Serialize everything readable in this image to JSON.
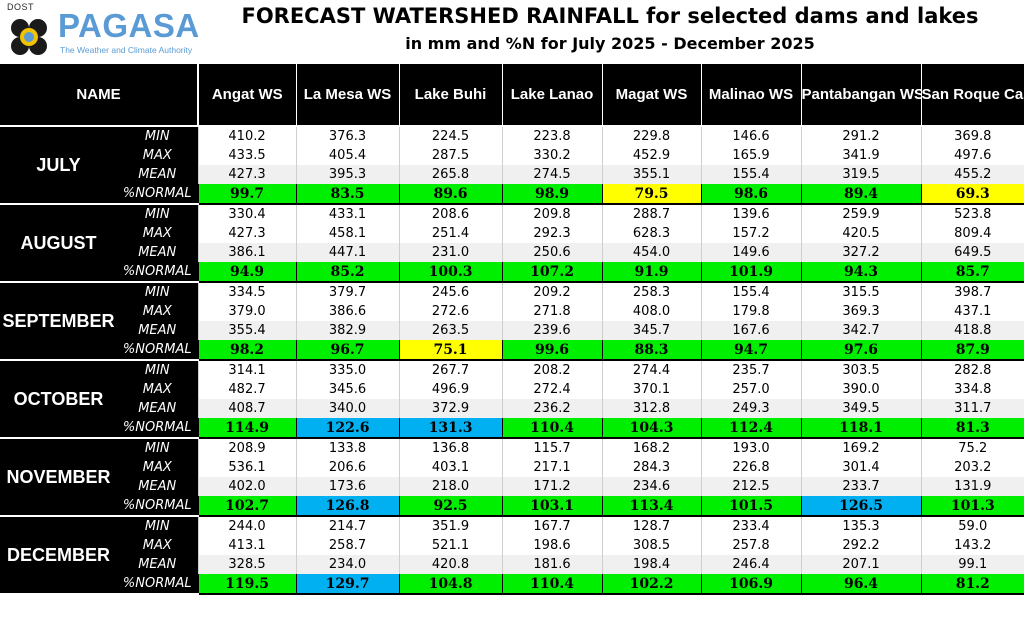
{
  "logo": {
    "agency_prefix": "DOST",
    "brand": "PAGASA",
    "tagline": "The Weather and Climate Authority"
  },
  "title": "FORECAST WATERSHED RAINFALL for selected dams and lakes",
  "subtitle": "in mm and %N for July 2025 - December 2025",
  "table": {
    "name_header": "NAME",
    "columns": [
      "Angat WS",
      "La Mesa WS",
      "Lake Buhi",
      "Lake Lanao",
      "Magat WS",
      "Malinao WS",
      "Pantabangan WS",
      "San Roque Cascade WS"
    ],
    "stat_labels": [
      "MIN",
      "MAX",
      "MEAN",
      "%NORMAL"
    ],
    "months": [
      {
        "name": "JULY",
        "min": [
          "410.2",
          "376.3",
          "224.5",
          "223.8",
          "229.8",
          "146.6",
          "291.2",
          "369.8"
        ],
        "max": [
          "433.5",
          "405.4",
          "287.5",
          "330.2",
          "452.9",
          "165.9",
          "341.9",
          "497.6"
        ],
        "mean": [
          "427.3",
          "395.3",
          "265.8",
          "274.5",
          "355.1",
          "155.4",
          "319.5",
          "455.2"
        ],
        "normal": [
          "99.7",
          "83.5",
          "89.6",
          "98.9",
          "79.5",
          "98.6",
          "89.4",
          "69.3"
        ],
        "normal_level": [
          "green",
          "green",
          "green",
          "green",
          "yellow",
          "green",
          "green",
          "yellow"
        ]
      },
      {
        "name": "AUGUST",
        "min": [
          "330.4",
          "433.1",
          "208.6",
          "209.8",
          "288.7",
          "139.6",
          "259.9",
          "523.8"
        ],
        "max": [
          "427.3",
          "458.1",
          "251.4",
          "292.3",
          "628.3",
          "157.2",
          "420.5",
          "809.4"
        ],
        "mean": [
          "386.1",
          "447.1",
          "231.0",
          "250.6",
          "454.0",
          "149.6",
          "327.2",
          "649.5"
        ],
        "normal": [
          "94.9",
          "85.2",
          "100.3",
          "107.2",
          "91.9",
          "101.9",
          "94.3",
          "85.7"
        ],
        "normal_level": [
          "green",
          "green",
          "green",
          "green",
          "green",
          "green",
          "green",
          "green"
        ]
      },
      {
        "name": "SEPTEMBER",
        "min": [
          "334.5",
          "379.7",
          "245.6",
          "209.2",
          "258.3",
          "155.4",
          "315.5",
          "398.7"
        ],
        "max": [
          "379.0",
          "386.6",
          "272.6",
          "271.8",
          "408.0",
          "179.8",
          "369.3",
          "437.1"
        ],
        "mean": [
          "355.4",
          "382.9",
          "263.5",
          "239.6",
          "345.7",
          "167.6",
          "342.7",
          "418.8"
        ],
        "normal": [
          "98.2",
          "96.7",
          "75.1",
          "99.6",
          "88.3",
          "94.7",
          "97.6",
          "87.9"
        ],
        "normal_level": [
          "green",
          "green",
          "yellow",
          "green",
          "green",
          "green",
          "green",
          "green"
        ]
      },
      {
        "name": "OCTOBER",
        "min": [
          "314.1",
          "335.0",
          "267.7",
          "208.2",
          "274.4",
          "235.7",
          "303.5",
          "282.8"
        ],
        "max": [
          "482.7",
          "345.6",
          "496.9",
          "272.4",
          "370.1",
          "257.0",
          "390.0",
          "334.8"
        ],
        "mean": [
          "408.7",
          "340.0",
          "372.9",
          "236.2",
          "312.8",
          "249.3",
          "349.5",
          "311.7"
        ],
        "normal": [
          "114.9",
          "122.6",
          "131.3",
          "110.4",
          "104.3",
          "112.4",
          "118.1",
          "81.3"
        ],
        "normal_level": [
          "green",
          "blue",
          "blue",
          "green",
          "green",
          "green",
          "green",
          "green"
        ]
      },
      {
        "name": "NOVEMBER",
        "min": [
          "208.9",
          "133.8",
          "136.8",
          "115.7",
          "168.2",
          "193.0",
          "169.2",
          "75.2"
        ],
        "max": [
          "536.1",
          "206.6",
          "403.1",
          "217.1",
          "284.3",
          "226.8",
          "301.4",
          "203.2"
        ],
        "mean": [
          "402.0",
          "173.6",
          "218.0",
          "171.2",
          "234.6",
          "212.5",
          "233.7",
          "131.9"
        ],
        "normal": [
          "102.7",
          "126.8",
          "92.5",
          "103.1",
          "113.4",
          "101.5",
          "126.5",
          "101.3"
        ],
        "normal_level": [
          "green",
          "blue",
          "green",
          "green",
          "green",
          "green",
          "blue",
          "green"
        ]
      },
      {
        "name": "DECEMBER",
        "min": [
          "244.0",
          "214.7",
          "351.9",
          "167.7",
          "128.7",
          "233.4",
          "135.3",
          "59.0"
        ],
        "max": [
          "413.1",
          "258.7",
          "521.1",
          "198.6",
          "308.5",
          "257.8",
          "292.2",
          "143.2"
        ],
        "mean": [
          "328.5",
          "234.0",
          "420.8",
          "181.6",
          "198.4",
          "246.4",
          "207.1",
          "99.1"
        ],
        "normal": [
          "119.5",
          "129.7",
          "104.8",
          "110.4",
          "102.2",
          "106.9",
          "96.4",
          "81.2"
        ],
        "normal_level": [
          "green",
          "blue",
          "green",
          "green",
          "green",
          "green",
          "green",
          "green"
        ]
      }
    ]
  },
  "colors": {
    "green": "#00ee00",
    "yellow": "#ffff00",
    "blue": "#00b0f0",
    "header_bg": "#000000",
    "brand_blue": "#5b9bd5"
  }
}
